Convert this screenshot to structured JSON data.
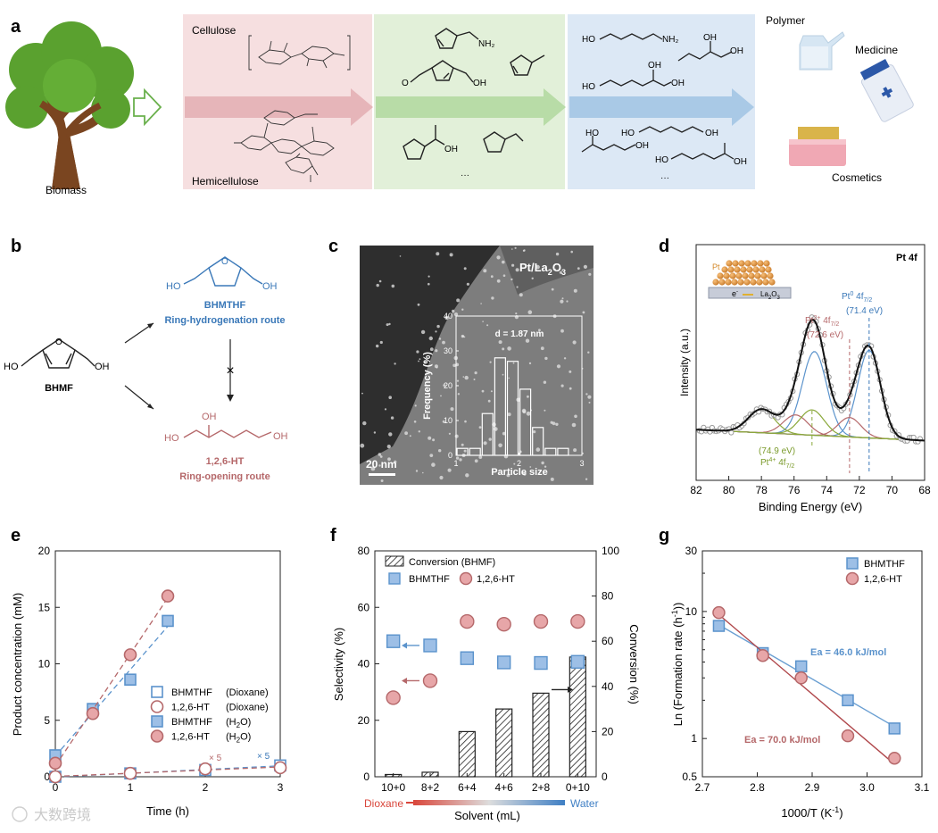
{
  "panel_labels": {
    "a": "a",
    "b": "b",
    "c": "c",
    "d": "d",
    "e": "e",
    "f": "f",
    "g": "g"
  },
  "panel_a": {
    "biomass_label": "Biomass",
    "cellulose_label": "Cellulose",
    "hemicellulose_label": "Hemicellulose",
    "dots1": "···",
    "dots2": "···",
    "polymer_label": "Polymer",
    "medicine_label": "Medicine",
    "cosmetics_label": "Cosmetics",
    "colors": {
      "pink": "#f6dfe0",
      "green": "#e2f0d9",
      "blue": "#dce8f5",
      "arrow_pink": "#e8b8bc",
      "arrow_green": "#b6dca6",
      "arrow_blue": "#a7c8e6"
    }
  },
  "panel_b": {
    "bhmf_label": "BHMF",
    "bhmthf_label": "BHMTHF",
    "ring_hydro_label": "Ring-hydrogenation route",
    "ht_label": "1,2,6-HT",
    "ring_open_label": "Ring-opening route",
    "oh": "OH",
    "ho": "HO",
    "blocked_mark": "×",
    "colors": {
      "blue": "#3a78b8",
      "red": "#b5686a"
    }
  },
  "panel_c": {
    "title": "Pt/La2O3",
    "scale_bar": "20 nm",
    "inset_note": "d = 1.87 nm",
    "inset_ylabel": "Frequency (%)",
    "inset_xlabel": "Particle size",
    "inset_yticks": [
      "0",
      "10",
      "20",
      "30",
      "40"
    ],
    "inset_xticks": [
      "1",
      "2",
      "3"
    ]
  },
  "chart_data": [
    {
      "panel": "c-inset",
      "type": "bar",
      "xlabel": "Particle size",
      "ylabel": "Frequency (%)",
      "xlim": [
        1,
        3
      ],
      "ylim": [
        0,
        40
      ],
      "bin_centers": [
        1.1,
        1.3,
        1.5,
        1.7,
        1.9,
        2.1,
        2.3,
        2.5,
        2.7
      ],
      "values": [
        2,
        2,
        12,
        28,
        27,
        19,
        8,
        2,
        2
      ]
    },
    {
      "panel": "d",
      "type": "line",
      "title": "Pt 4f",
      "xlabel": "Binding Energy (eV)",
      "ylabel": "Intensity (a.u.)",
      "xlim": [
        82,
        68
      ],
      "xticks": [
        82,
        80,
        78,
        76,
        74,
        72,
        70,
        68
      ],
      "peak_labels": [
        "Pt0 4f7/2 (71.4 eV)",
        "Pt2+ 4f7/2 (72.6 eV)",
        "(74.9 eV) Pt4+ 4f7/2"
      ],
      "reference_lines_eV": [
        72.6,
        71.4
      ],
      "inset_labels": [
        "Pt",
        "e-",
        "La2O3"
      ]
    },
    {
      "panel": "e",
      "type": "scatter",
      "xlabel": "Time (h)",
      "ylabel": "Product concentration (mM)",
      "xlim": [
        0,
        3
      ],
      "ylim": [
        0,
        20
      ],
      "xticks": [
        0,
        1,
        2,
        3
      ],
      "yticks": [
        0,
        5,
        10,
        15,
        20
      ],
      "legend": [
        "BHMTHF",
        "1,2,6-HT",
        "BHMTHF",
        "1,2,6-HT"
      ],
      "legend_solvents": [
        "(Dioxane)",
        "(Dioxane)",
        "(H2O)",
        "(H2O)"
      ],
      "annotations": [
        "× 5",
        "× 5"
      ],
      "series": [
        {
          "name": "BHMTHF (Dioxane)",
          "x": [
            0,
            1,
            2,
            3
          ],
          "y": [
            0,
            0.3,
            0.6,
            1.0
          ]
        },
        {
          "name": "1,2,6-HT (Dioxane)",
          "x": [
            0,
            1,
            2,
            3
          ],
          "y": [
            0,
            0.3,
            0.7,
            0.8
          ]
        },
        {
          "name": "BHMTHF (H2O)",
          "x": [
            0,
            0.5,
            1,
            1.5
          ],
          "y": [
            1.9,
            6.0,
            8.6,
            13.8
          ]
        },
        {
          "name": "1,2,6-HT (H2O)",
          "x": [
            0,
            0.5,
            1,
            1.5
          ],
          "y": [
            1.2,
            5.6,
            10.8,
            16.0
          ]
        }
      ]
    },
    {
      "panel": "f",
      "type": "bar",
      "xlabel": "Solvent (mL)",
      "ylabel": "Selectivity (%)",
      "y2label": "Conversion (%)",
      "ylim": [
        0,
        80
      ],
      "y2lim": [
        0,
        100
      ],
      "yticks": [
        0,
        20,
        40,
        60,
        80
      ],
      "y2ticks": [
        0,
        20,
        40,
        60,
        80,
        100
      ],
      "categories": [
        "10+0",
        "8+2",
        "6+4",
        "4+6",
        "2+8",
        "0+10"
      ],
      "legend": [
        "Conversion (BHMF)",
        "BHMTHF",
        "1,2,6-HT"
      ],
      "axis_left_end": "Dioxane",
      "axis_right_end": "Water",
      "series": [
        {
          "name": "Conversion (BHMF)",
          "values": [
            1,
            2,
            20,
            30,
            37,
            53
          ]
        },
        {
          "name": "BHMTHF",
          "values": [
            48,
            46.5,
            42,
            40.5,
            40.3,
            40.7
          ]
        },
        {
          "name": "1,2,6-HT",
          "values": [
            28,
            34,
            55,
            54,
            55,
            55
          ]
        }
      ]
    },
    {
      "panel": "g",
      "type": "scatter",
      "xlabel": "1000/T (K-1)",
      "ylabel": "Ln (Formation rate (h-1))",
      "xlim": [
        2.7,
        3.1
      ],
      "ylim": [
        0.5,
        30
      ],
      "log_y": true,
      "xticks": [
        2.7,
        2.8,
        2.9,
        3.0,
        3.1
      ],
      "ytick_labels": [
        "0.5",
        "1",
        "10",
        "30"
      ],
      "legend": [
        "BHMTHF",
        "1,2,6-HT"
      ],
      "annotations": [
        "Ea = 46.0 kJ/mol",
        "Ea = 70.0 kJ/mol"
      ],
      "series": [
        {
          "name": "BHMTHF",
          "x": [
            2.73,
            2.81,
            2.88,
            2.965,
            3.05
          ],
          "y": [
            7.7,
            4.7,
            3.7,
            2.0,
            1.2
          ]
        },
        {
          "name": "1,2,6-HT",
          "x": [
            2.73,
            2.81,
            2.88,
            2.965,
            3.05
          ],
          "y": [
            9.8,
            4.5,
            3.0,
            1.05,
            0.7
          ]
        }
      ]
    }
  ],
  "watermark": "大数跨境"
}
